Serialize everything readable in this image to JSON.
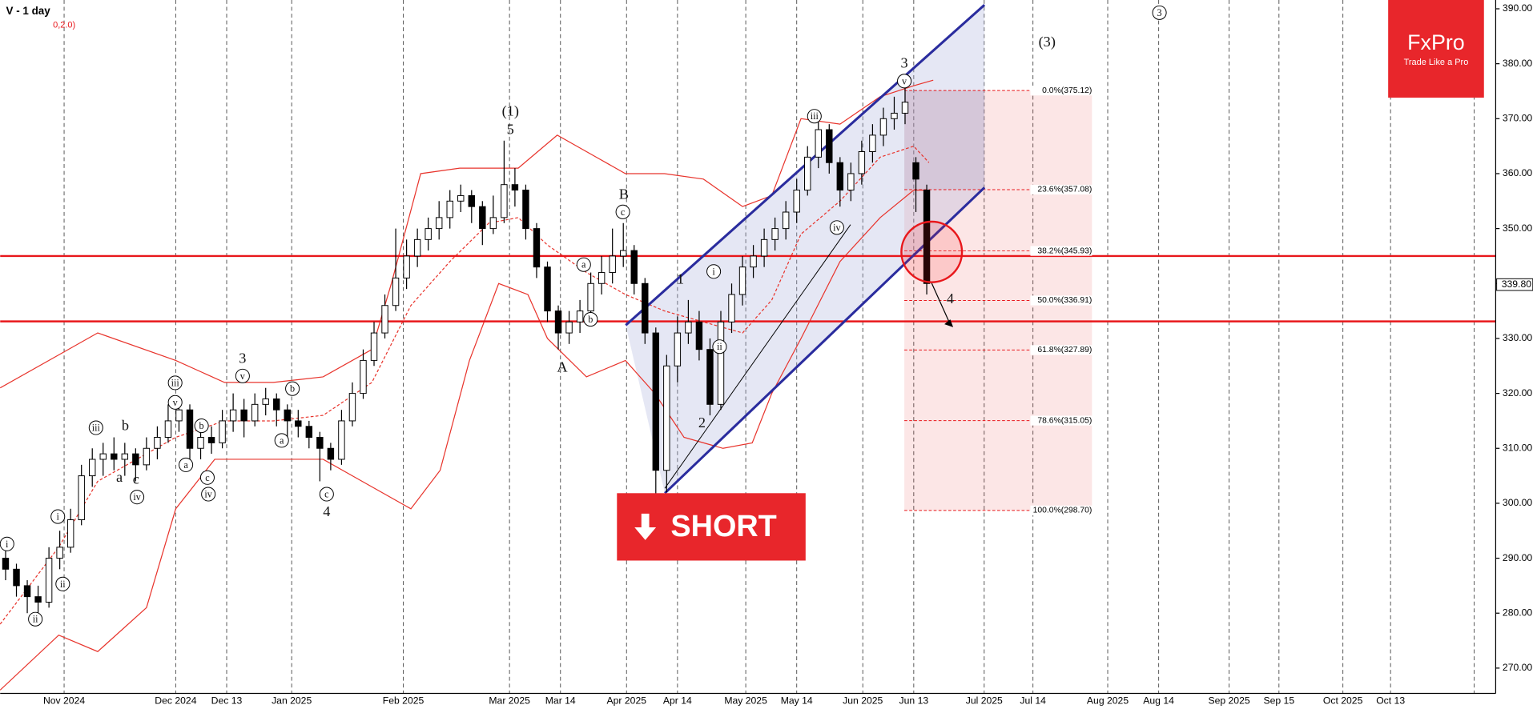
{
  "chart_data": {
    "type": "candlestick",
    "title": "V - 1 day",
    "indicator": "0,2.0)",
    "brand": "FxPro",
    "tagline": "Trade Like a Pro",
    "action": "SHORT",
    "last_price": {
      "value": 339.8,
      "label": "339.80"
    },
    "xlim": [
      0,
      138
    ],
    "ylim": [
      265.4,
      391.6
    ],
    "xticks": [
      {
        "value": 5.9,
        "label": "Nov 2024"
      },
      {
        "value": 16.2,
        "label": "Dec 2024"
      },
      {
        "value": 20.9,
        "label": "Dec 13"
      },
      {
        "value": 26.9,
        "label": "Jan 2025"
      },
      {
        "value": 37.2,
        "label": "Feb 2025"
      },
      {
        "value": 47.0,
        "label": "Mar 2025"
      },
      {
        "value": 51.7,
        "label": "Mar 14"
      },
      {
        "value": 57.8,
        "label": "Apr 2025"
      },
      {
        "value": 62.5,
        "label": "Apr 14"
      },
      {
        "value": 68.8,
        "label": "May 2025"
      },
      {
        "value": 73.5,
        "label": "May 14"
      },
      {
        "value": 79.6,
        "label": "Jun 2025"
      },
      {
        "value": 84.3,
        "label": "Jun 13"
      },
      {
        "value": 90.8,
        "label": "Jul 2025"
      },
      {
        "value": 95.3,
        "label": "Jul 14"
      },
      {
        "value": 102.2,
        "label": "Aug 2025"
      },
      {
        "value": 106.9,
        "label": "Aug 14"
      },
      {
        "value": 113.4,
        "label": "Sep 2025"
      },
      {
        "value": 118.0,
        "label": "Sep 15"
      },
      {
        "value": 123.9,
        "label": "Oct 2025"
      },
      {
        "value": 128.3,
        "label": "Oct 13"
      }
    ],
    "yticks": [
      {
        "value": 270,
        "label": "270.00"
      },
      {
        "value": 280,
        "label": "280.00"
      },
      {
        "value": 290,
        "label": "290.00"
      },
      {
        "value": 300,
        "label": "300.00"
      },
      {
        "value": 310,
        "label": "310.00"
      },
      {
        "value": 320,
        "label": "320.00"
      },
      {
        "value": 330,
        "label": "330.00"
      },
      {
        "value": 340,
        "label": "340.00"
      },
      {
        "value": 350,
        "label": "350.00"
      },
      {
        "value": 360,
        "label": "360.00"
      },
      {
        "value": 370,
        "label": "370.00"
      },
      {
        "value": 380,
        "label": "380.00"
      },
      {
        "value": 390,
        "label": "390.00"
      }
    ],
    "grid": true,
    "up_color": "#ffffff",
    "down_color": "#000000",
    "ohlc": [
      [
        290,
        292,
        286,
        288
      ],
      [
        288,
        289,
        283,
        285
      ],
      [
        285,
        286,
        280,
        283
      ],
      [
        283,
        285,
        280,
        282
      ],
      [
        282,
        292,
        281,
        290
      ],
      [
        290,
        295,
        288,
        292
      ],
      [
        292,
        299,
        291,
        297
      ],
      [
        297,
        307,
        296,
        305
      ],
      [
        305,
        310,
        303,
        308
      ],
      [
        308,
        311,
        305,
        309
      ],
      [
        309,
        312,
        306,
        308
      ],
      [
        308,
        311,
        305,
        309
      ],
      [
        309,
        310,
        304,
        307
      ],
      [
        307,
        312,
        306,
        310
      ],
      [
        310,
        314,
        308,
        312
      ],
      [
        312,
        318,
        311,
        315
      ],
      [
        315,
        319,
        313,
        317
      ],
      [
        317,
        318,
        308,
        310
      ],
      [
        310,
        314,
        308,
        312
      ],
      [
        312,
        314,
        309,
        311
      ],
      [
        311,
        317,
        310,
        315
      ],
      [
        315,
        320,
        313,
        317
      ],
      [
        317,
        319,
        312,
        315
      ],
      [
        315,
        320,
        314,
        318
      ],
      [
        318,
        321,
        316,
        319
      ],
      [
        319,
        320,
        314,
        317
      ],
      [
        317,
        318,
        312,
        315
      ],
      [
        315,
        317,
        312,
        314
      ],
      [
        314,
        315,
        310,
        312
      ],
      [
        312,
        313,
        304,
        310
      ],
      [
        310,
        311,
        306,
        308
      ],
      [
        308,
        317,
        307,
        315
      ],
      [
        315,
        322,
        314,
        320
      ],
      [
        320,
        328,
        319,
        326
      ],
      [
        326,
        333,
        325,
        331
      ],
      [
        331,
        338,
        330,
        336
      ],
      [
        336,
        350,
        335,
        341
      ],
      [
        341,
        348,
        339,
        345
      ],
      [
        345,
        350,
        343,
        348
      ],
      [
        348,
        352,
        346,
        350
      ],
      [
        350,
        355,
        348,
        352
      ],
      [
        352,
        357,
        350,
        355
      ],
      [
        355,
        358,
        353,
        356
      ],
      [
        356,
        357,
        351,
        354
      ],
      [
        354,
        355,
        347,
        350
      ],
      [
        350,
        356,
        349,
        352
      ],
      [
        352,
        366,
        351,
        358
      ],
      [
        358,
        361,
        354,
        357
      ],
      [
        357,
        358,
        348,
        350
      ],
      [
        350,
        351,
        341,
        343
      ],
      [
        343,
        344,
        333,
        335
      ],
      [
        335,
        336,
        328,
        331
      ],
      [
        331,
        335,
        329,
        333
      ],
      [
        333,
        337,
        331,
        335
      ],
      [
        335,
        342,
        334,
        340
      ],
      [
        340,
        345,
        338,
        342
      ],
      [
        342,
        350,
        340,
        345
      ],
      [
        345,
        351,
        343,
        346
      ],
      [
        346,
        347,
        338,
        340
      ],
      [
        340,
        341,
        329,
        331
      ],
      [
        331,
        332,
        301,
        306
      ],
      [
        306,
        327,
        302,
        325
      ],
      [
        325,
        334,
        322,
        331
      ],
      [
        331,
        337,
        329,
        333
      ],
      [
        333,
        335,
        326,
        328
      ],
      [
        328,
        330,
        316,
        318
      ],
      [
        318,
        335,
        317,
        333
      ],
      [
        333,
        340,
        331,
        338
      ],
      [
        338,
        345,
        336,
        343
      ],
      [
        343,
        347,
        341,
        345
      ],
      [
        345,
        350,
        343,
        348
      ],
      [
        348,
        352,
        346,
        350
      ],
      [
        350,
        355,
        348,
        353
      ],
      [
        353,
        359,
        351,
        357
      ],
      [
        357,
        365,
        356,
        363
      ],
      [
        363,
        370,
        361,
        368
      ],
      [
        368,
        369,
        360,
        362
      ],
      [
        362,
        363,
        354,
        357
      ],
      [
        357,
        362,
        355,
        360
      ],
      [
        360,
        366,
        358,
        364
      ],
      [
        364,
        369,
        362,
        367
      ],
      [
        367,
        372,
        365,
        370
      ],
      [
        370,
        374,
        368,
        371
      ],
      [
        371,
        377,
        369,
        373
      ],
      [
        362,
        363,
        353,
        359
      ],
      [
        357,
        358,
        338,
        340
      ]
    ],
    "bands": [
      {
        "color": "#e8342c",
        "dashed": false,
        "x": [
          0,
          5.4,
          9.0,
          16.2,
          20.7,
          25.2,
          29.8,
          34.3,
          36.1,
          38.8,
          42.4,
          47.8,
          51.4,
          55.0,
          57.7,
          61.3,
          64.9,
          68.5,
          71.2,
          73.9,
          77.5,
          81.2,
          84.3,
          86.1
        ],
        "values": [
          321,
          327,
          331,
          326,
          322,
          322,
          323,
          328,
          340,
          360,
          361,
          361,
          367,
          363,
          360,
          360,
          359,
          354,
          356,
          370,
          369,
          374,
          376,
          377
        ]
      },
      {
        "color": "#e8342c",
        "dashed": true,
        "x": [
          0,
          5.4,
          9.0,
          16.2,
          20.7,
          25.2,
          29.8,
          34.3,
          37.9,
          41.5,
          45.1,
          47.8,
          50.5,
          54.1,
          57.7,
          61.3,
          64.9,
          68.5,
          71.2,
          73.9,
          77.5,
          81.2,
          84.3,
          85.7
        ],
        "values": [
          278,
          292,
          304,
          312,
          315,
          315,
          316,
          322,
          336,
          344,
          351,
          352,
          347,
          342,
          338,
          335,
          333,
          331,
          337,
          349,
          355,
          363,
          365,
          362
        ]
      },
      {
        "color": "#e8342c",
        "dashed": false,
        "x": [
          0,
          5.4,
          9.0,
          13.5,
          16.2,
          19.8,
          25.2,
          29.8,
          34.3,
          37.9,
          40.6,
          43.3,
          46.0,
          48.7,
          50.5,
          54.1,
          57.7,
          60.4,
          63.1,
          66.7,
          69.4,
          71.2,
          73.9,
          77.5,
          81.2,
          84.3,
          85.7
        ],
        "values": [
          266,
          276,
          273,
          281,
          299,
          308,
          308,
          308,
          303,
          299,
          306,
          326,
          340,
          338,
          330,
          323,
          326,
          320,
          312,
          310,
          311,
          320,
          330,
          344,
          352,
          357,
          357
        ]
      }
    ],
    "levels": [
      345.0,
      333.1
    ],
    "level_color": "#e8171b",
    "fib_levels": [
      {
        "value": 375.12,
        "label": "0.0%(375.12)"
      },
      {
        "value": 357.08,
        "label": "23.6%(357.08)"
      },
      {
        "value": 345.93,
        "label": "38.2%(345.93)"
      },
      {
        "value": 336.91,
        "label": "50.0%(336.91)"
      },
      {
        "value": 327.89,
        "label": "61.8%(327.89)"
      },
      {
        "value": 315.05,
        "label": "78.6%(315.05)"
      },
      {
        "value": 298.7,
        "label": "100.0%(298.70)"
      }
    ],
    "annotations": [
      "i",
      "ii",
      "i",
      "ii",
      "iii",
      "b",
      "a",
      "c",
      "iv",
      "iii",
      "v",
      "b",
      "a",
      "c",
      "iv",
      "3",
      "v",
      "b",
      "a",
      "c",
      "4",
      "(1)",
      "5",
      "B",
      "c",
      "a",
      "b",
      "A",
      "1",
      "i",
      "ii",
      "2",
      "iii",
      "iv",
      "3",
      "v",
      "(3)",
      "3",
      "4"
    ]
  }
}
